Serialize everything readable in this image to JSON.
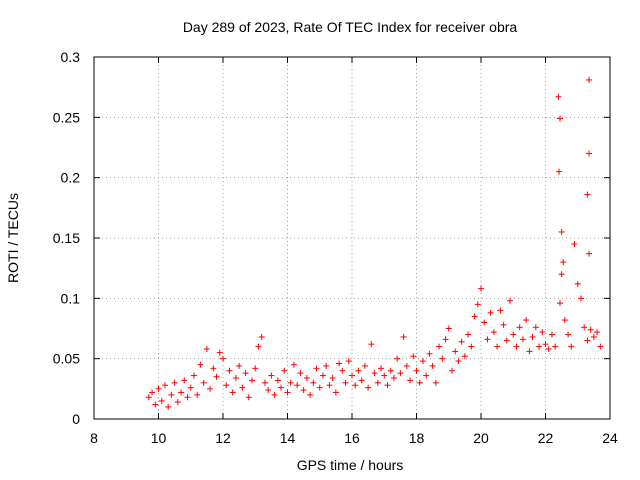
{
  "chart_data": {
    "type": "scatter",
    "title": "Day 289 of 2023, Rate Of TEC Index for receiver obra",
    "xlabel": "GPS time / hours",
    "ylabel": "ROTI / TECUs",
    "xlim": [
      8,
      24
    ],
    "ylim": [
      0,
      0.3
    ],
    "x_ticks": [
      {
        "value": 8,
        "label": "8"
      },
      {
        "value": 10,
        "label": "10"
      },
      {
        "value": 12,
        "label": "12"
      },
      {
        "value": 14,
        "label": "14"
      },
      {
        "value": 16,
        "label": "16"
      },
      {
        "value": 18,
        "label": "18"
      },
      {
        "value": 20,
        "label": "20"
      },
      {
        "value": 22,
        "label": "22"
      },
      {
        "value": 24,
        "label": "24"
      }
    ],
    "y_ticks": [
      {
        "value": 0,
        "label": "0"
      },
      {
        "value": 0.05,
        "label": "0.05"
      },
      {
        "value": 0.1,
        "label": "0.1"
      },
      {
        "value": 0.15,
        "label": "0.15"
      },
      {
        "value": 0.2,
        "label": "0.2"
      },
      {
        "value": 0.25,
        "label": "0.25"
      },
      {
        "value": 0.3,
        "label": "0.3"
      }
    ],
    "grid": true,
    "marker": "+",
    "series": [
      {
        "name": "ROTI",
        "color": "#ff0000",
        "points": [
          [
            9.7,
            0.018
          ],
          [
            9.8,
            0.022
          ],
          [
            9.9,
            0.012
          ],
          [
            10.0,
            0.025
          ],
          [
            10.1,
            0.015
          ],
          [
            10.2,
            0.028
          ],
          [
            10.3,
            0.01
          ],
          [
            10.4,
            0.02
          ],
          [
            10.5,
            0.03
          ],
          [
            10.6,
            0.014
          ],
          [
            10.7,
            0.022
          ],
          [
            10.8,
            0.032
          ],
          [
            10.9,
            0.018
          ],
          [
            11.0,
            0.026
          ],
          [
            11.1,
            0.036
          ],
          [
            11.2,
            0.02
          ],
          [
            11.3,
            0.045
          ],
          [
            11.4,
            0.03
          ],
          [
            11.5,
            0.058
          ],
          [
            11.6,
            0.025
          ],
          [
            11.7,
            0.042
          ],
          [
            11.8,
            0.035
          ],
          [
            11.9,
            0.055
          ],
          [
            12.0,
            0.05
          ],
          [
            12.1,
            0.028
          ],
          [
            12.2,
            0.04
          ],
          [
            12.3,
            0.022
          ],
          [
            12.4,
            0.034
          ],
          [
            12.5,
            0.044
          ],
          [
            12.6,
            0.026
          ],
          [
            12.7,
            0.038
          ],
          [
            12.8,
            0.018
          ],
          [
            12.9,
            0.032
          ],
          [
            13.0,
            0.042
          ],
          [
            13.1,
            0.06
          ],
          [
            13.2,
            0.068
          ],
          [
            13.3,
            0.03
          ],
          [
            13.4,
            0.024
          ],
          [
            13.5,
            0.036
          ],
          [
            13.6,
            0.02
          ],
          [
            13.7,
            0.032
          ],
          [
            13.8,
            0.026
          ],
          [
            13.9,
            0.04
          ],
          [
            14.0,
            0.022
          ],
          [
            14.1,
            0.03
          ],
          [
            14.2,
            0.045
          ],
          [
            14.3,
            0.028
          ],
          [
            14.4,
            0.038
          ],
          [
            14.5,
            0.024
          ],
          [
            14.6,
            0.034
          ],
          [
            14.7,
            0.02
          ],
          [
            14.8,
            0.03
          ],
          [
            14.9,
            0.042
          ],
          [
            15.0,
            0.026
          ],
          [
            15.1,
            0.036
          ],
          [
            15.2,
            0.044
          ],
          [
            15.3,
            0.028
          ],
          [
            15.4,
            0.034
          ],
          [
            15.5,
            0.022
          ],
          [
            15.6,
            0.046
          ],
          [
            15.7,
            0.04
          ],
          [
            15.8,
            0.03
          ],
          [
            15.9,
            0.048
          ],
          [
            16.0,
            0.036
          ],
          [
            16.1,
            0.028
          ],
          [
            16.2,
            0.04
          ],
          [
            16.3,
            0.032
          ],
          [
            16.4,
            0.044
          ],
          [
            16.5,
            0.026
          ],
          [
            16.6,
            0.062
          ],
          [
            16.7,
            0.038
          ],
          [
            16.8,
            0.03
          ],
          [
            16.9,
            0.042
          ],
          [
            17.0,
            0.036
          ],
          [
            17.1,
            0.028
          ],
          [
            17.2,
            0.04
          ],
          [
            17.3,
            0.034
          ],
          [
            17.4,
            0.05
          ],
          [
            17.5,
            0.038
          ],
          [
            17.6,
            0.068
          ],
          [
            17.7,
            0.044
          ],
          [
            17.8,
            0.032
          ],
          [
            17.9,
            0.052
          ],
          [
            18.0,
            0.04
          ],
          [
            18.1,
            0.03
          ],
          [
            18.2,
            0.048
          ],
          [
            18.3,
            0.036
          ],
          [
            18.4,
            0.054
          ],
          [
            18.5,
            0.044
          ],
          [
            18.6,
            0.03
          ],
          [
            18.7,
            0.06
          ],
          [
            18.8,
            0.05
          ],
          [
            18.9,
            0.066
          ],
          [
            19.0,
            0.075
          ],
          [
            19.1,
            0.04
          ],
          [
            19.2,
            0.056
          ],
          [
            19.3,
            0.048
          ],
          [
            19.4,
            0.064
          ],
          [
            19.5,
            0.052
          ],
          [
            19.6,
            0.07
          ],
          [
            19.7,
            0.06
          ],
          [
            19.8,
            0.085
          ],
          [
            19.9,
            0.095
          ],
          [
            20.0,
            0.108
          ],
          [
            20.1,
            0.08
          ],
          [
            20.2,
            0.066
          ],
          [
            20.3,
            0.088
          ],
          [
            20.4,
            0.072
          ],
          [
            20.5,
            0.06
          ],
          [
            20.6,
            0.09
          ],
          [
            20.7,
            0.078
          ],
          [
            20.8,
            0.065
          ],
          [
            20.9,
            0.098
          ],
          [
            21.0,
            0.07
          ],
          [
            21.1,
            0.06
          ],
          [
            21.2,
            0.076
          ],
          [
            21.3,
            0.066
          ],
          [
            21.4,
            0.082
          ],
          [
            21.5,
            0.056
          ],
          [
            21.6,
            0.068
          ],
          [
            21.7,
            0.076
          ],
          [
            21.8,
            0.06
          ],
          [
            21.9,
            0.072
          ],
          [
            22.0,
            0.062
          ],
          [
            22.1,
            0.058
          ],
          [
            22.2,
            0.07
          ],
          [
            22.3,
            0.06
          ],
          [
            22.4,
            0.267
          ],
          [
            22.45,
            0.249
          ],
          [
            22.42,
            0.205
          ],
          [
            22.5,
            0.155
          ],
          [
            22.55,
            0.13
          ],
          [
            22.5,
            0.12
          ],
          [
            22.45,
            0.096
          ],
          [
            22.6,
            0.082
          ],
          [
            22.7,
            0.07
          ],
          [
            22.8,
            0.06
          ],
          [
            22.9,
            0.145
          ],
          [
            23.0,
            0.112
          ],
          [
            23.1,
            0.1
          ],
          [
            23.2,
            0.076
          ],
          [
            23.3,
            0.065
          ],
          [
            23.35,
            0.281
          ],
          [
            23.35,
            0.22
          ],
          [
            23.3,
            0.186
          ],
          [
            23.35,
            0.137
          ],
          [
            23.4,
            0.074
          ],
          [
            23.5,
            0.068
          ],
          [
            23.6,
            0.072
          ],
          [
            23.7,
            0.06
          ]
        ]
      }
    ]
  }
}
